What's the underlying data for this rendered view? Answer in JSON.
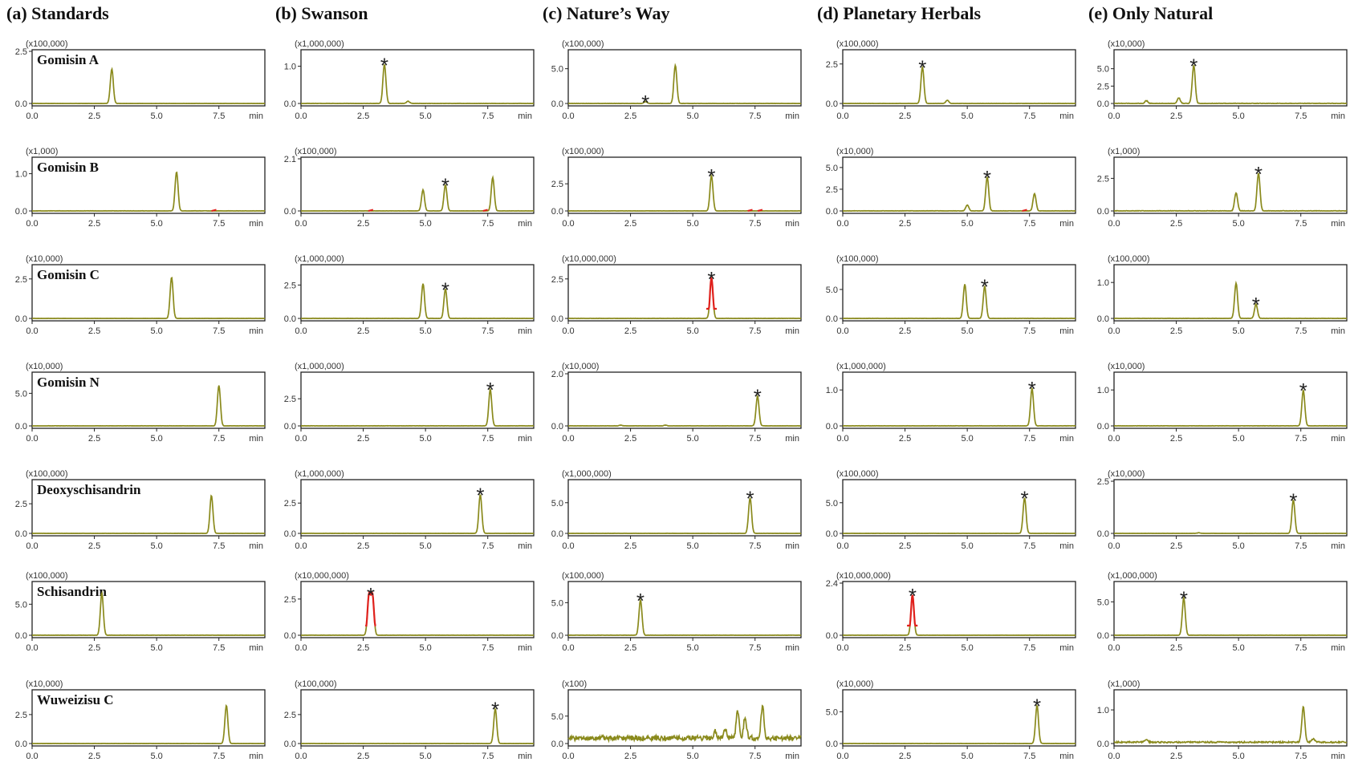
{
  "chart_data": {
    "type": "line",
    "columns": [
      {
        "label": "(a) Standards"
      },
      {
        "label": "(b) Swanson"
      },
      {
        "label": "(c) Nature’s Way"
      },
      {
        "label": "(d) Planetary Herbals"
      },
      {
        "label": "(e) Only Natural"
      }
    ],
    "compounds": [
      "Gomisin  A",
      "Gomisin  B",
      "Gomisin  C",
      "Gomisin  N",
      "Deoxyschisandrin",
      "Schisandrin",
      "Wuweizisu  C"
    ],
    "x_unit": "min",
    "xlim": [
      0,
      10
    ],
    "series_color": "#8a8a1c",
    "saturation_color": "#e0201c",
    "panels": [
      [
        {
          "multiplier": "(x100,000)",
          "yticks": [
            "0.0",
            "2.5"
          ],
          "ymax": 2.5,
          "xticks": [
            "0.0",
            "2.5",
            "5.0",
            "7.5"
          ],
          "peaks": [
            {
              "t": 3.2,
              "h": 1.65
            }
          ],
          "noise": 0.01,
          "starred": false
        },
        {
          "multiplier": "(x1,000,000)",
          "yticks": [
            "0.0",
            "1.0"
          ],
          "ymax": 1.4,
          "xticks": [
            "0.0",
            "2.5",
            "5.0",
            "7.5"
          ],
          "peaks": [
            {
              "t": 3.35,
              "h": 1.05
            },
            {
              "t": 4.3,
              "h": 0.06
            }
          ],
          "noise": 0.01,
          "starred": true,
          "star_t": 3.35
        },
        {
          "multiplier": "(x100,000)",
          "yticks": [
            "0.0",
            "5.0"
          ],
          "ymax": 7.5,
          "xticks": [
            "0.0",
            "2.5",
            "5.0",
            "7.5"
          ],
          "peaks": [
            {
              "t": 4.3,
              "h": 5.5
            },
            {
              "t": 3.1,
              "h": 0.25
            }
          ],
          "noise": 0.05,
          "starred": true,
          "star_t": 3.1
        },
        {
          "multiplier": "(x100,000)",
          "yticks": [
            "0.0",
            "2.5"
          ],
          "ymax": 3.3,
          "xticks": [
            "0.0",
            "2.5",
            "5.0",
            "7.5"
          ],
          "peaks": [
            {
              "t": 3.2,
              "h": 2.3
            },
            {
              "t": 4.2,
              "h": 0.2
            }
          ],
          "noise": 0.02,
          "starred": true,
          "star_t": 3.2
        },
        {
          "multiplier": "(x10,000)",
          "yticks": [
            "0.0",
            "2.5",
            "5.0"
          ],
          "ymax": 7.5,
          "xticks": [
            "0.0",
            "2.5",
            "5.0",
            "7.5"
          ],
          "peaks": [
            {
              "t": 3.2,
              "h": 5.5
            },
            {
              "t": 2.6,
              "h": 0.8
            },
            {
              "t": 1.3,
              "h": 0.4
            }
          ],
          "noise": 0.1,
          "starred": true,
          "star_t": 3.2
        }
      ],
      [
        {
          "multiplier": "(x1,000)",
          "yticks": [
            "0.0",
            "1.0"
          ],
          "ymax": 1.4,
          "xticks": [
            "0.0",
            "2.5",
            "5.0",
            "7.5"
          ],
          "peaks": [
            {
              "t": 5.8,
              "h": 1.05
            }
          ],
          "noise": 0.01,
          "starred": false,
          "red_marks": [
            7.3
          ]
        },
        {
          "multiplier": "(x100,000)",
          "yticks": [
            "0.0",
            "2.1"
          ],
          "ymax": 2.1,
          "xticks": [
            "0.0",
            "2.5",
            "5.0",
            "7.5"
          ],
          "peaks": [
            {
              "t": 4.9,
              "h": 0.85
            },
            {
              "t": 5.8,
              "h": 1.05
            },
            {
              "t": 7.7,
              "h": 1.35
            }
          ],
          "noise": 0.01,
          "starred": true,
          "star_t": 5.8,
          "red_marks": [
            2.8,
            7.4
          ]
        },
        {
          "multiplier": "(x100,000)",
          "yticks": [
            "0.0",
            "2.5"
          ],
          "ymax": 4.8,
          "xticks": [
            "0.0",
            "2.5",
            "5.0",
            "7.5"
          ],
          "peaks": [
            {
              "t": 5.75,
              "h": 3.25
            }
          ],
          "noise": 0.02,
          "starred": true,
          "star_t": 5.75,
          "red_marks": [
            7.3,
            7.7
          ]
        },
        {
          "multiplier": "(x10,000)",
          "yticks": [
            "0.0",
            "2.5",
            "5.0"
          ],
          "ymax": 6.0,
          "xticks": [
            "0.0",
            "2.5",
            "5.0",
            "7.5"
          ],
          "peaks": [
            {
              "t": 5.0,
              "h": 0.7
            },
            {
              "t": 5.8,
              "h": 3.9
            },
            {
              "t": 7.7,
              "h": 2.0
            }
          ],
          "noise": 0.05,
          "starred": true,
          "star_t": 5.8,
          "red_marks": [
            7.3
          ]
        },
        {
          "multiplier": "(x1,000)",
          "yticks": [
            "0.0",
            "2.5"
          ],
          "ymax": 4.0,
          "xticks": [
            "0.0",
            "2.5",
            "5.0",
            "7.5"
          ],
          "peaks": [
            {
              "t": 4.9,
              "h": 1.4
            },
            {
              "t": 5.8,
              "h": 2.9
            }
          ],
          "noise": 0.05,
          "starred": true,
          "star_t": 5.8
        }
      ],
      [
        {
          "multiplier": "(x10,000)",
          "yticks": [
            "0.0",
            "2.5"
          ],
          "ymax": 3.3,
          "xticks": [
            "0.0",
            "2.5",
            "5.0",
            "7.5"
          ],
          "peaks": [
            {
              "t": 5.6,
              "h": 2.6
            }
          ],
          "noise": 0.01,
          "starred": false
        },
        {
          "multiplier": "(x1,000,000)",
          "yticks": [
            "0.0",
            "2.5"
          ],
          "ymax": 3.9,
          "xticks": [
            "0.0",
            "2.5",
            "5.0",
            "7.5"
          ],
          "peaks": [
            {
              "t": 4.9,
              "h": 2.6
            },
            {
              "t": 5.8,
              "h": 2.2
            }
          ],
          "noise": 0.02,
          "starred": true,
          "star_t": 5.8
        },
        {
          "multiplier": "(x10,000,000)",
          "yticks": [
            "0.0",
            "2.5"
          ],
          "ymax": 3.3,
          "xticks": [
            "0.0",
            "2.5",
            "5.0",
            "7.5"
          ],
          "peaks": [
            {
              "t": 5.75,
              "h": 2.55,
              "saturated": true
            }
          ],
          "noise": 0.02,
          "starred": true,
          "star_t": 5.75
        },
        {
          "multiplier": "(x100,000)",
          "yticks": [
            "0.0",
            "5.0"
          ],
          "ymax": 9.0,
          "xticks": [
            "0.0",
            "2.5",
            "5.0",
            "7.5"
          ],
          "peaks": [
            {
              "t": 4.9,
              "h": 5.9
            },
            {
              "t": 5.7,
              "h": 5.6
            }
          ],
          "noise": 0.05,
          "starred": true,
          "star_t": 5.7
        },
        {
          "multiplier": "(x100,000)",
          "yticks": [
            "0.0",
            "1.0"
          ],
          "ymax": 1.45,
          "xticks": [
            "0.0",
            "2.5",
            "5.0",
            "7.5"
          ],
          "peaks": [
            {
              "t": 4.9,
              "h": 0.98
            },
            {
              "t": 5.7,
              "h": 0.4
            }
          ],
          "noise": 0.01,
          "starred": true,
          "star_t": 5.7
        }
      ],
      [
        {
          "multiplier": "(x10,000)",
          "yticks": [
            "0.0",
            "5.0"
          ],
          "ymax": 8.0,
          "xticks": [
            "0.0",
            "2.5",
            "5.0",
            "7.5"
          ],
          "peaks": [
            {
              "t": 7.5,
              "h": 6.2
            }
          ],
          "noise": 0.04,
          "starred": false
        },
        {
          "multiplier": "(x1,000,000)",
          "yticks": [
            "0.0",
            "2.5"
          ],
          "ymax": 4.8,
          "xticks": [
            "0.0",
            "2.5",
            "5.0",
            "7.5"
          ],
          "peaks": [
            {
              "t": 7.6,
              "h": 3.4
            }
          ],
          "noise": 0.03,
          "starred": true,
          "star_t": 7.6
        },
        {
          "multiplier": "(x10,000)",
          "yticks": [
            "0.0",
            "2.0"
          ],
          "ymax": 2.0,
          "xticks": [
            "0.0",
            "2.5",
            "5.0",
            "7.5"
          ],
          "peaks": [
            {
              "t": 7.6,
              "h": 1.15
            },
            {
              "t": 2.1,
              "h": 0.03
            },
            {
              "t": 3.9,
              "h": 0.03
            }
          ],
          "noise": 0.01,
          "starred": true,
          "star_t": 7.6
        },
        {
          "multiplier": "(x1,000,000)",
          "yticks": [
            "0.0",
            "1.0"
          ],
          "ymax": 1.45,
          "xticks": [
            "0.0",
            "2.5",
            "5.0",
            "7.5"
          ],
          "peaks": [
            {
              "t": 7.6,
              "h": 1.05
            }
          ],
          "noise": 0.01,
          "starred": true,
          "star_t": 7.6
        },
        {
          "multiplier": "(x10,000)",
          "yticks": [
            "0.0",
            "1.0"
          ],
          "ymax": 1.45,
          "xticks": [
            "0.0",
            "2.5",
            "5.0",
            "7.5"
          ],
          "peaks": [
            {
              "t": 7.6,
              "h": 1.0
            }
          ],
          "noise": 0.01,
          "starred": true,
          "star_t": 7.6
        }
      ],
      [
        {
          "multiplier": "(x100,000)",
          "yticks": [
            "0.0",
            "2.5"
          ],
          "ymax": 4.4,
          "xticks": [
            "0.0",
            "2.5",
            "5.0",
            "7.5"
          ],
          "peaks": [
            {
              "t": 7.2,
              "h": 3.2
            }
          ],
          "noise": 0.02,
          "starred": false
        },
        {
          "multiplier": "(x1,000,000)",
          "yticks": [
            "0.0",
            "2.5"
          ],
          "ymax": 4.3,
          "xticks": [
            "0.0",
            "2.5",
            "5.0",
            "7.5"
          ],
          "peaks": [
            {
              "t": 7.2,
              "h": 3.2
            }
          ],
          "noise": 0.02,
          "starred": true,
          "star_t": 7.2
        },
        {
          "multiplier": "(x1,000,000)",
          "yticks": [
            "0.0",
            "5.0"
          ],
          "ymax": 8.5,
          "xticks": [
            "0.0",
            "2.5",
            "5.0",
            "7.5"
          ],
          "peaks": [
            {
              "t": 7.3,
              "h": 5.8
            }
          ],
          "noise": 0.04,
          "starred": true,
          "star_t": 7.3
        },
        {
          "multiplier": "(x100,000)",
          "yticks": [
            "0.0",
            "5.0"
          ],
          "ymax": 8.5,
          "xticks": [
            "0.0",
            "2.5",
            "5.0",
            "7.5"
          ],
          "peaks": [
            {
              "t": 7.3,
              "h": 5.8
            }
          ],
          "noise": 0.04,
          "starred": true,
          "star_t": 7.3
        },
        {
          "multiplier": "(x10,000)",
          "yticks": [
            "0.0",
            "2.5"
          ],
          "ymax": 2.5,
          "xticks": [
            "0.0",
            "2.5",
            "5.0",
            "7.5"
          ],
          "peaks": [
            {
              "t": 7.2,
              "h": 1.6
            },
            {
              "t": 3.4,
              "h": 0.03
            }
          ],
          "noise": 0.01,
          "starred": true,
          "star_t": 7.2
        }
      ],
      [
        {
          "multiplier": "(x100,000)",
          "yticks": [
            "0.0",
            "5.0"
          ],
          "ymax": 8.4,
          "xticks": [
            "0.0",
            "2.5",
            "5.0",
            "7.5"
          ],
          "peaks": [
            {
              "t": 2.8,
              "h": 6.8
            }
          ],
          "noise": 0.05,
          "starred": false
        },
        {
          "multiplier": "(x10,000,000)",
          "yticks": [
            "0.0",
            "2.5"
          ],
          "ymax": 3.6,
          "xticks": [
            "0.0",
            "2.5",
            "5.0",
            "7.5"
          ],
          "peaks": [
            {
              "t": 2.8,
              "h": 2.85,
              "saturated": true,
              "double": true
            }
          ],
          "noise": 0.02,
          "starred": true,
          "star_t": 2.8
        },
        {
          "multiplier": "(x100,000)",
          "yticks": [
            "0.0",
            "5.0"
          ],
          "ymax": 8.0,
          "xticks": [
            "0.0",
            "2.5",
            "5.0",
            "7.5"
          ],
          "peaks": [
            {
              "t": 2.9,
              "h": 5.4
            }
          ],
          "noise": 0.06,
          "starred": true,
          "star_t": 2.9
        },
        {
          "multiplier": "(x10,000,000)",
          "yticks": [
            "0.0",
            "2.4"
          ],
          "ymax": 2.4,
          "xticks": [
            "0.0",
            "2.5",
            "5.0",
            "7.5"
          ],
          "peaks": [
            {
              "t": 2.8,
              "h": 1.85,
              "saturated": true
            }
          ],
          "noise": 0.01,
          "starred": true,
          "star_t": 2.8
        },
        {
          "multiplier": "(x1,000,000)",
          "yticks": [
            "0.0",
            "5.0"
          ],
          "ymax": 7.8,
          "xticks": [
            "0.0",
            "2.5",
            "5.0",
            "7.5"
          ],
          "peaks": [
            {
              "t": 2.8,
              "h": 5.6
            }
          ],
          "noise": 0.04,
          "starred": true,
          "star_t": 2.8
        }
      ],
      [
        {
          "multiplier": "(x10,000)",
          "yticks": [
            "0.0",
            "2.5"
          ],
          "ymax": 4.5,
          "xticks": [
            "0.0",
            "2.5",
            "5.0",
            "7.5"
          ],
          "xunit_label": "min",
          "peaks": [
            {
              "t": 7.8,
              "h": 3.3
            }
          ],
          "noise": 0.02,
          "starred": false
        },
        {
          "multiplier": "(x100,000)",
          "yticks": [
            "0.0",
            "2.5"
          ],
          "ymax": 4.5,
          "xticks": [
            "0.0",
            "2.5",
            "5.0",
            "7.5"
          ],
          "peaks": [
            {
              "t": 7.8,
              "h": 3.0
            }
          ],
          "noise": 0.02,
          "starred": true,
          "star_t": 7.8
        },
        {
          "multiplier": "(x100)",
          "yticks": [
            "0.0",
            "5.0"
          ],
          "ymax": 9.5,
          "xticks": [
            "0.0",
            "2.5",
            "5.0",
            "7.5"
          ],
          "peaks": [
            {
              "t": 6.8,
              "h": 4.8
            },
            {
              "t": 7.1,
              "h": 3.8
            },
            {
              "t": 7.8,
              "h": 5.8
            },
            {
              "t": 5.9,
              "h": 1.2
            },
            {
              "t": 6.3,
              "h": 1.6
            }
          ],
          "noise": 0.9,
          "baseline": 1.0,
          "starred": false
        },
        {
          "multiplier": "(x10,000)",
          "yticks": [
            "0.0",
            "5.0"
          ],
          "ymax": 8.2,
          "xticks": [
            "0.0",
            "2.5",
            "5.0",
            "7.5"
          ],
          "peaks": [
            {
              "t": 7.8,
              "h": 6.0
            }
          ],
          "noise": 0.04,
          "starred": true,
          "star_t": 7.8
        },
        {
          "multiplier": "(x1,000)",
          "yticks": [
            "0.0",
            "1.0"
          ],
          "ymax": 1.55,
          "xticks": [
            "0.0",
            "2.5",
            "5.0",
            "7.5"
          ],
          "peaks": [
            {
              "t": 7.6,
              "h": 1.05
            },
            {
              "t": 1.3,
              "h": 0.08
            },
            {
              "t": 8.0,
              "h": 0.1
            }
          ],
          "noise": 0.04,
          "baseline": 0.04,
          "starred": false
        }
      ]
    ],
    "star_symbol": "*"
  }
}
